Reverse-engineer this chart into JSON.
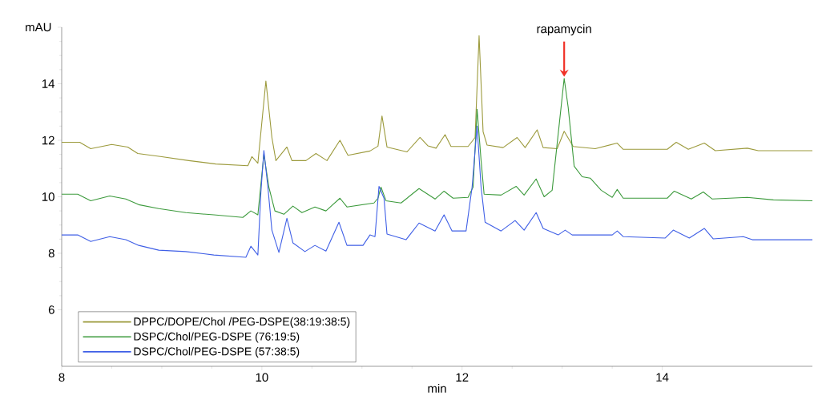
{
  "chart_data": {
    "type": "line",
    "xlabel": "min",
    "ylabel": "mAU",
    "xlim": [
      8,
      15.5
    ],
    "ylim": [
      4,
      16
    ],
    "xticks": [
      8,
      10,
      12,
      14
    ],
    "yticks": [
      6,
      8,
      10,
      12,
      14,
      {
        "value": 16,
        "label": null
      }
    ],
    "legend": "bottom left",
    "annotations": [
      {
        "text": "rapamycin",
        "x": 13.02,
        "y": 14.19
      }
    ],
    "series": [
      {
        "name": "DPPC/DOPE/Chol /PEG-DSPE(38:19:38:5)",
        "color": "#9c9a3c",
        "x": [
          8,
          8.18,
          8.29,
          8.5,
          8.66,
          8.76,
          9.0,
          9.27,
          9.54,
          9.86,
          9.9,
          9.96,
          10.04,
          10.1,
          10.14,
          10.25,
          10.3,
          10.44,
          10.54,
          10.65,
          10.78,
          10.86,
          11.08,
          11.16,
          11.2,
          11.25,
          11.45,
          11.58,
          11.66,
          11.74,
          11.83,
          11.89,
          12.06,
          12.13,
          12.17,
          12.21,
          12.25,
          12.41,
          12.55,
          12.63,
          12.75,
          12.81,
          12.95,
          13.02,
          13.11,
          13.33,
          13.55,
          13.61,
          14.05,
          14.14,
          14.26,
          14.42,
          14.53,
          14.85,
          14.96,
          15.5
        ],
        "values": [
          11.93,
          11.93,
          11.7,
          11.85,
          11.76,
          11.53,
          11.42,
          11.28,
          11.16,
          11.1,
          11.42,
          11.19,
          14.1,
          12.1,
          11.28,
          11.76,
          11.28,
          11.28,
          11.53,
          11.28,
          12.0,
          11.47,
          11.62,
          11.79,
          12.86,
          11.76,
          11.59,
          12.1,
          11.8,
          11.72,
          12.2,
          11.78,
          11.78,
          12.1,
          15.7,
          12.3,
          11.83,
          11.74,
          12.1,
          11.74,
          12.37,
          11.74,
          11.7,
          12.32,
          11.78,
          11.7,
          11.9,
          11.68,
          11.68,
          11.93,
          11.68,
          11.9,
          11.63,
          11.72,
          11.63,
          11.63
        ]
      },
      {
        "name": "DSPC/Chol/PEG-DSPE (76:19:5)",
        "color": "#3c9a3c",
        "x": [
          8,
          8.16,
          8.29,
          8.48,
          8.64,
          8.77,
          8.97,
          9.24,
          9.52,
          9.81,
          9.89,
          9.96,
          10.02,
          10.07,
          10.13,
          10.22,
          10.31,
          10.4,
          10.53,
          10.64,
          10.78,
          10.85,
          11.12,
          11.16,
          11.19,
          11.24,
          11.39,
          11.57,
          11.73,
          11.82,
          11.91,
          12.06,
          12.11,
          12.15,
          12.19,
          12.22,
          12.39,
          12.54,
          12.62,
          12.74,
          12.82,
          12.9,
          12.96,
          13.02,
          13.06,
          13.12,
          13.2,
          13.28,
          13.39,
          13.5,
          13.55,
          13.61,
          14.05,
          14.12,
          14.29,
          14.41,
          14.5,
          14.85,
          15.11,
          15.5
        ],
        "values": [
          10.09,
          10.09,
          9.86,
          10.03,
          9.92,
          9.72,
          9.58,
          9.44,
          9.36,
          9.27,
          9.5,
          9.36,
          11.5,
          10.34,
          9.5,
          9.38,
          9.67,
          9.44,
          9.64,
          9.5,
          9.95,
          9.64,
          9.78,
          9.95,
          10.34,
          9.86,
          9.78,
          10.29,
          9.92,
          10.2,
          9.95,
          9.98,
          10.34,
          13.1,
          11.28,
          10.09,
          10.06,
          10.37,
          10.06,
          10.63,
          10.0,
          10.23,
          12.21,
          14.19,
          13.17,
          11.08,
          10.71,
          10.66,
          10.23,
          9.98,
          10.26,
          9.95,
          9.95,
          10.2,
          9.92,
          10.17,
          9.92,
          9.98,
          9.89,
          9.86
        ]
      },
      {
        "name": "DSPC/Chol/PEG-DSPE (57:38:5)",
        "color": "#3f5fe6",
        "x": [
          8,
          8.16,
          8.29,
          8.48,
          8.64,
          8.77,
          8.97,
          9.24,
          9.52,
          9.84,
          9.89,
          9.96,
          9.99,
          10.02,
          10.06,
          10.1,
          10.17,
          10.25,
          10.31,
          10.43,
          10.53,
          10.64,
          10.77,
          10.85,
          11.01,
          11.08,
          11.13,
          11.17,
          11.22,
          11.25,
          11.44,
          11.57,
          11.73,
          11.82,
          11.9,
          12.04,
          12.1,
          12.15,
          12.19,
          12.23,
          12.39,
          12.53,
          12.62,
          12.74,
          12.81,
          12.96,
          13.03,
          13.1,
          13.5,
          13.55,
          13.61,
          14.03,
          14.11,
          14.27,
          14.42,
          14.51,
          14.81,
          14.9,
          15.5
        ],
        "values": [
          8.65,
          8.65,
          8.42,
          8.59,
          8.48,
          8.28,
          8.11,
          8.06,
          7.94,
          7.86,
          8.25,
          7.94,
          10.15,
          11.64,
          10.34,
          8.82,
          8.03,
          9.24,
          8.37,
          8.06,
          8.28,
          8.08,
          9.1,
          8.28,
          8.28,
          8.65,
          8.59,
          10.37,
          9.95,
          8.68,
          8.48,
          9.07,
          8.79,
          9.36,
          8.79,
          8.79,
          10.34,
          12.5,
          10.34,
          9.1,
          8.79,
          9.16,
          8.82,
          9.44,
          8.88,
          8.65,
          8.82,
          8.65,
          8.65,
          8.79,
          8.59,
          8.54,
          8.82,
          8.54,
          8.88,
          8.51,
          8.59,
          8.48,
          8.48
        ]
      }
    ]
  }
}
